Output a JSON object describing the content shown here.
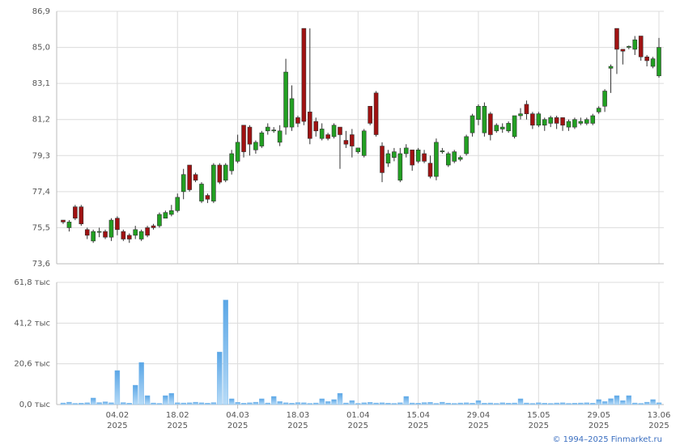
{
  "chart_data": [
    {
      "type": "candlestick",
      "up_color": "#22a022",
      "down_color": "#a01212",
      "edge_color": "#333333",
      "grid": true,
      "ylim": [
        73.6,
        86.9
      ],
      "yticks": [
        {
          "value": 73.6,
          "label": "73,6"
        },
        {
          "value": 75.5,
          "label": "75,5"
        },
        {
          "value": 77.4,
          "label": "77,4"
        },
        {
          "value": 79.3,
          "label": "79,3"
        },
        {
          "value": 81.2,
          "label": "81,2"
        },
        {
          "value": 83.1,
          "label": "83,1"
        },
        {
          "value": 85.0,
          "label": "85,0"
        },
        {
          "value": 86.9,
          "label": "86,9"
        }
      ],
      "open": [
        75.9,
        75.5,
        76.6,
        76.6,
        75.4,
        74.8,
        75.3,
        75.3,
        75.0,
        76.0,
        75.3,
        75.1,
        75.1,
        74.9,
        75.5,
        75.6,
        75.6,
        76.0,
        76.2,
        76.4,
        77.4,
        78.8,
        78.3,
        76.9,
        77.2,
        76.9,
        78.8,
        78.0,
        78.5,
        79.0,
        80.9,
        80.8,
        79.6,
        79.8,
        80.6,
        80.6,
        80.0,
        80.8,
        80.8,
        81.3,
        86.0,
        81.6,
        81.1,
        80.2,
        80.4,
        80.3,
        80.8,
        80.1,
        80.4,
        79.5,
        79.3,
        81.9,
        82.6,
        79.8,
        78.9,
        79.2,
        78.0,
        79.4,
        79.6,
        79.0,
        79.4,
        78.9,
        78.2,
        79.5,
        78.8,
        79.0,
        79.1,
        79.4,
        80.5,
        81.2,
        80.5,
        81.5,
        80.6,
        80.7,
        80.6,
        80.3,
        81.4,
        82.0,
        81.5,
        80.9,
        80.9,
        81.0,
        81.3,
        81.3,
        80.8,
        80.8,
        81.0,
        81.0,
        81.0,
        81.6,
        81.9,
        83.9,
        86.0,
        84.9,
        85.0,
        84.9,
        85.6,
        84.5,
        84.0,
        83.5
      ],
      "high": [
        75.9,
        75.9,
        76.7,
        76.7,
        75.5,
        75.4,
        75.5,
        75.4,
        76.0,
        76.1,
        75.4,
        75.2,
        75.6,
        75.4,
        75.6,
        75.7,
        76.3,
        76.4,
        76.7,
        77.3,
        78.6,
        78.8,
        78.4,
        77.9,
        77.3,
        78.9,
        78.9,
        78.9,
        79.6,
        80.4,
        80.9,
        80.9,
        80.1,
        80.6,
        81.0,
        80.8,
        80.9,
        84.4,
        83.0,
        81.4,
        86.0,
        86.0,
        81.3,
        81.0,
        80.5,
        81.0,
        80.8,
        80.6,
        80.7,
        79.7,
        80.7,
        81.9,
        82.7,
        80.0,
        79.6,
        79.7,
        79.7,
        79.9,
        79.6,
        79.7,
        79.6,
        79.3,
        80.2,
        79.7,
        79.5,
        79.6,
        79.3,
        80.4,
        81.5,
        82.0,
        82.1,
        81.6,
        81.0,
        81.0,
        81.1,
        81.4,
        81.8,
        82.2,
        81.6,
        81.6,
        81.3,
        81.4,
        81.4,
        81.3,
        81.2,
        81.3,
        81.3,
        81.3,
        81.5,
        81.9,
        82.8,
        84.1,
        86.0,
        84.9,
        85.1,
        85.6,
        85.6,
        84.6,
        84.5,
        85.5
      ],
      "low": [
        75.7,
        75.3,
        75.9,
        75.6,
        74.9,
        74.7,
        75.0,
        74.9,
        74.8,
        75.1,
        74.8,
        74.7,
        74.9,
        74.8,
        75.0,
        75.4,
        75.5,
        76.0,
        76.1,
        76.3,
        77.0,
        77.4,
        77.9,
        76.8,
        76.8,
        76.8,
        77.8,
        77.9,
        78.3,
        78.9,
        79.2,
        79.3,
        79.4,
        79.7,
        80.4,
        80.5,
        79.8,
        80.4,
        80.6,
        80.8,
        80.9,
        79.9,
        80.3,
        80.1,
        80.1,
        80.2,
        78.6,
        79.7,
        79.2,
        79.4,
        79.2,
        80.9,
        80.3,
        77.9,
        78.7,
        79.0,
        77.9,
        79.2,
        78.5,
        78.9,
        78.9,
        78.1,
        78.0,
        79.4,
        78.7,
        78.9,
        79.0,
        79.3,
        80.3,
        80.9,
        80.3,
        80.1,
        80.5,
        80.5,
        80.5,
        80.2,
        81.2,
        81.2,
        80.7,
        80.8,
        80.6,
        80.8,
        80.7,
        80.6,
        80.6,
        80.7,
        80.9,
        80.9,
        80.9,
        81.5,
        81.6,
        82.6,
        83.6,
        84.1,
        84.9,
        84.6,
        84.3,
        84.0,
        83.9,
        83.4
      ],
      "close": [
        75.8,
        75.8,
        76.0,
        75.7,
        75.1,
        75.3,
        75.3,
        75.0,
        75.9,
        75.4,
        74.9,
        74.9,
        75.4,
        75.3,
        75.1,
        75.5,
        76.2,
        76.3,
        76.4,
        77.1,
        78.3,
        77.5,
        78.0,
        77.8,
        77.0,
        78.8,
        77.9,
        78.8,
        79.4,
        80.0,
        79.5,
        79.9,
        80.0,
        80.5,
        80.8,
        80.65,
        80.6,
        83.7,
        82.3,
        81.0,
        81.1,
        80.2,
        80.6,
        80.7,
        80.2,
        80.9,
        80.4,
        79.9,
        79.8,
        79.7,
        80.6,
        81.0,
        80.4,
        78.4,
        79.4,
        79.5,
        79.4,
        79.7,
        78.8,
        79.6,
        79.0,
        78.2,
        80.0,
        79.55,
        79.4,
        79.5,
        79.2,
        80.3,
        81.4,
        81.9,
        81.9,
        80.4,
        80.9,
        80.8,
        81.0,
        81.4,
        81.5,
        81.5,
        80.9,
        81.5,
        81.2,
        81.3,
        81.0,
        80.9,
        81.1,
        81.2,
        81.1,
        81.2,
        81.4,
        81.8,
        82.7,
        84.0,
        84.9,
        84.8,
        85.05,
        85.4,
        84.5,
        84.3,
        84.4,
        85.0
      ]
    },
    {
      "type": "bar",
      "color": "#7ab8ec",
      "grid": true,
      "ylim": [
        0,
        61.8
      ],
      "yticks": [
        {
          "value": 0,
          "label": "0,0 тыс"
        },
        {
          "value": 20.6,
          "label": "20,6 тыс"
        },
        {
          "value": 41.2,
          "label": "41,2 тыс"
        },
        {
          "value": 61.8,
          "label": "61,8 тыс"
        }
      ],
      "categories": [
        null,
        null,
        null,
        null,
        null,
        null,
        null,
        null,
        null,
        "04.02",
        null,
        null,
        null,
        null,
        null,
        null,
        null,
        null,
        null,
        "18.02",
        null,
        null,
        null,
        null,
        null,
        null,
        null,
        null,
        null,
        "04.03",
        null,
        null,
        null,
        null,
        null,
        null,
        null,
        null,
        null,
        "18.03",
        null,
        null,
        null,
        null,
        null,
        null,
        null,
        null,
        null,
        "01.04",
        null,
        null,
        null,
        null,
        null,
        null,
        null,
        null,
        null,
        "15.04",
        null,
        null,
        null,
        null,
        null,
        null,
        null,
        null,
        null,
        "29.04",
        null,
        null,
        null,
        null,
        null,
        null,
        null,
        null,
        null,
        "15.05",
        null,
        null,
        null,
        null,
        null,
        null,
        null,
        null,
        null,
        "29.05",
        null,
        null,
        null,
        null,
        null,
        null,
        null,
        null,
        null,
        "13.06"
      ],
      "x_sublabel": "2025",
      "values": [
        0.8,
        1.2,
        0.6,
        0.7,
        0.9,
        3.3,
        1.0,
        1.4,
        0.9,
        17.2,
        1.0,
        0.7,
        9.8,
        21.3,
        4.5,
        0.8,
        0.6,
        4.5,
        5.7,
        0.9,
        0.8,
        0.9,
        1.2,
        0.9,
        0.7,
        1.0,
        26.6,
        52.9,
        2.9,
        1.1,
        0.7,
        0.9,
        1.2,
        2.9,
        0.8,
        4.1,
        1.5,
        0.9,
        0.7,
        1.0,
        0.9,
        0.6,
        0.8,
        2.9,
        1.5,
        2.5,
        5.7,
        0.8,
        2.0,
        0.6,
        0.9,
        1.1,
        0.8,
        0.9,
        0.7,
        0.6,
        0.9,
        4.1,
        0.8,
        0.7,
        1.0,
        1.1,
        0.6,
        1.2,
        0.7,
        0.6,
        0.8,
        0.9,
        0.7,
        2.0,
        0.7,
        0.8,
        0.6,
        0.9,
        0.7,
        0.8,
        2.9,
        0.8,
        0.6,
        0.9,
        0.7,
        0.6,
        0.8,
        0.9,
        0.6,
        0.7,
        0.8,
        0.9,
        0.7,
        2.5,
        1.5,
        3.0,
        4.5,
        2.0,
        4.5,
        0.8,
        0.6,
        1.2,
        2.5,
        0.9
      ]
    }
  ],
  "footer": "© 1994–2025 Finmarket.ru"
}
